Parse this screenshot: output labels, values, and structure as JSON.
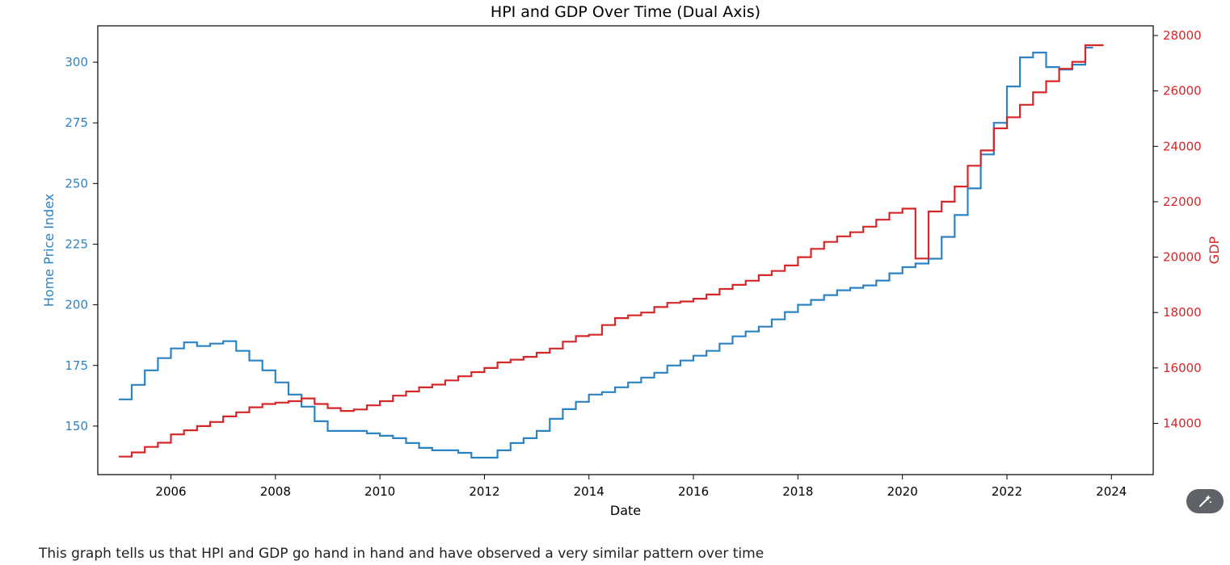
{
  "chart_data": {
    "type": "line",
    "title": "HPI and GDP Over Time (Dual Axis)",
    "xlabel": "Date",
    "x_ticks": [
      "2006",
      "2008",
      "2010",
      "2012",
      "2014",
      "2016",
      "2018",
      "2020",
      "2022",
      "2024"
    ],
    "xlim": [
      2004.6,
      2024.8
    ],
    "y_left": {
      "label": "Home Price Index",
      "color": "#2b83c4",
      "ylim": [
        130,
        315
      ],
      "ticks": [
        150,
        175,
        200,
        225,
        250,
        275,
        300
      ]
    },
    "y_right": {
      "label": "GDP",
      "color": "#d62728",
      "ylim": [
        12150,
        28350
      ],
      "ticks": [
        14000,
        16000,
        18000,
        20000,
        22000,
        24000,
        26000,
        28000
      ]
    },
    "series": [
      {
        "name": "",
        "axis": "left",
        "color": "#2b83c4",
        "x": [
          2005.0,
          2005.25,
          2005.5,
          2005.75,
          2006.0,
          2006.25,
          2006.5,
          2006.75,
          2007.0,
          2007.25,
          2007.5,
          2007.75,
          2008.0,
          2008.25,
          2008.5,
          2008.75,
          2009.0,
          2009.25,
          2009.5,
          2009.75,
          2010.0,
          2010.25,
          2010.5,
          2010.75,
          2011.0,
          2011.25,
          2011.5,
          2011.75,
          2012.0,
          2012.25,
          2012.5,
          2012.75,
          2013.0,
          2013.25,
          2013.5,
          2013.75,
          2014.0,
          2014.25,
          2014.5,
          2014.75,
          2015.0,
          2015.25,
          2015.5,
          2015.75,
          2016.0,
          2016.25,
          2016.5,
          2016.75,
          2017.0,
          2017.25,
          2017.5,
          2017.75,
          2018.0,
          2018.25,
          2018.5,
          2018.75,
          2019.0,
          2019.25,
          2019.5,
          2019.75,
          2020.0,
          2020.25,
          2020.5,
          2020.75,
          2021.0,
          2021.25,
          2021.5,
          2021.75,
          2022.0,
          2022.25,
          2022.5,
          2022.75,
          2023.0,
          2023.25,
          2023.5
        ],
        "values": [
          161,
          167,
          173,
          178,
          182,
          184.5,
          183,
          184,
          185,
          181,
          177,
          173,
          168,
          163,
          158,
          152,
          148,
          148,
          148,
          147,
          146,
          145,
          143,
          141,
          140,
          140,
          139,
          137,
          137,
          140,
          143,
          145,
          148,
          153,
          157,
          160,
          163,
          164,
          166,
          168,
          170,
          172,
          175,
          177,
          179,
          181,
          184,
          187,
          189,
          191,
          194,
          197,
          200,
          202,
          204,
          206,
          207,
          208,
          210,
          213,
          215.5,
          217,
          219,
          228,
          237,
          248,
          262,
          275,
          290,
          302,
          304,
          298,
          297,
          299,
          306
        ],
        "end_x": 2023.65
      },
      {
        "name": "",
        "axis": "right",
        "color": "#d62728",
        "x": [
          2005.0,
          2005.25,
          2005.5,
          2005.75,
          2006.0,
          2006.25,
          2006.5,
          2006.75,
          2007.0,
          2007.25,
          2007.5,
          2007.75,
          2008.0,
          2008.25,
          2008.5,
          2008.75,
          2009.0,
          2009.25,
          2009.5,
          2009.75,
          2010.0,
          2010.25,
          2010.5,
          2010.75,
          2011.0,
          2011.25,
          2011.5,
          2011.75,
          2012.0,
          2012.25,
          2012.5,
          2012.75,
          2013.0,
          2013.25,
          2013.5,
          2013.75,
          2014.0,
          2014.25,
          2014.5,
          2014.75,
          2015.0,
          2015.25,
          2015.5,
          2015.75,
          2016.0,
          2016.25,
          2016.5,
          2016.75,
          2017.0,
          2017.25,
          2017.5,
          2017.75,
          2018.0,
          2018.25,
          2018.5,
          2018.75,
          2019.0,
          2019.25,
          2019.5,
          2019.75,
          2020.0,
          2020.25,
          2020.5,
          2020.75,
          2021.0,
          2021.25,
          2021.5,
          2021.75,
          2022.0,
          2022.25,
          2022.5,
          2022.75,
          2023.0,
          2023.25,
          2023.5
        ],
        "values": [
          12800,
          12950,
          13150,
          13300,
          13600,
          13750,
          13900,
          14050,
          14250,
          14400,
          14580,
          14700,
          14750,
          14800,
          14900,
          14700,
          14550,
          14450,
          14500,
          14650,
          14800,
          15000,
          15150,
          15300,
          15400,
          15550,
          15700,
          15850,
          16000,
          16200,
          16300,
          16400,
          16550,
          16700,
          16950,
          17150,
          17200,
          17550,
          17800,
          17900,
          18000,
          18200,
          18350,
          18400,
          18500,
          18650,
          18850,
          19000,
          19150,
          19350,
          19500,
          19700,
          20000,
          20300,
          20550,
          20750,
          20900,
          21100,
          21350,
          21600,
          21750,
          19950,
          21650,
          22000,
          22550,
          23300,
          23850,
          24650,
          25050,
          25500,
          25950,
          26350,
          26800,
          27050,
          27650
        ],
        "end_x": 2023.85
      }
    ]
  },
  "caption": "This graph tells us that HPI and GDP go hand in hand and have observed a very similar pattern over time",
  "magic_button": {
    "icon": "magic-wand-icon",
    "color": "#5f6368"
  }
}
